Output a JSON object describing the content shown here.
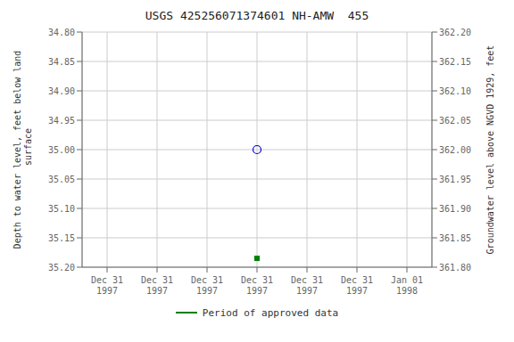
{
  "chart_data": {
    "type": "scatter",
    "title": "USGS 425256071374601 NH-AMW  455",
    "y_label": "Depth to water level, feet below land\n surface",
    "y2_label": "Groundwater level above NGVD 1929, feet",
    "categories": [
      "Dec 31\n1997",
      "Dec 31\n1997",
      "Dec 31\n1997",
      "Dec 31\n1997",
      "Dec 31\n1997",
      "Dec 31\n1997",
      "Jan 01\n1998"
    ],
    "series": [
      {
        "color": "#0000cc",
        "marker": "open_circle",
        "values": [
          null,
          null,
          null,
          35.0,
          null,
          null,
          null
        ]
      },
      {
        "name": "Period of approved data",
        "color": "#008000",
        "marker": "square",
        "values": [
          null,
          null,
          null,
          35.185,
          null,
          null,
          null
        ]
      }
    ],
    "ylim": [
      35.2,
      34.8
    ],
    "yticks": [
      {
        "value": 34.8,
        "label": "34.80"
      },
      {
        "value": 34.85,
        "label": "34.85"
      },
      {
        "value": 34.9,
        "label": "34.90"
      },
      {
        "value": 34.95,
        "label": "34.95"
      },
      {
        "value": 35.0,
        "label": "35.00"
      },
      {
        "value": 35.05,
        "label": "35.05"
      },
      {
        "value": 35.1,
        "label": "35.10"
      },
      {
        "value": 35.15,
        "label": "35.15"
      },
      {
        "value": 35.2,
        "label": "35.20"
      }
    ],
    "y2lim": [
      361.8,
      362.2
    ],
    "y2ticks": [
      {
        "value": 361.8,
        "label": "361.80"
      },
      {
        "value": 361.85,
        "label": "361.85"
      },
      {
        "value": 361.9,
        "label": "361.90"
      },
      {
        "value": 361.95,
        "label": "361.95"
      },
      {
        "value": 362.0,
        "label": "362.00"
      },
      {
        "value": 362.05,
        "label": "362.05"
      },
      {
        "value": 362.1,
        "label": "362.10"
      },
      {
        "value": 362.15,
        "label": "362.15"
      },
      {
        "value": 362.2,
        "label": "362.20"
      }
    ],
    "grid": true,
    "legend": "bottom"
  }
}
